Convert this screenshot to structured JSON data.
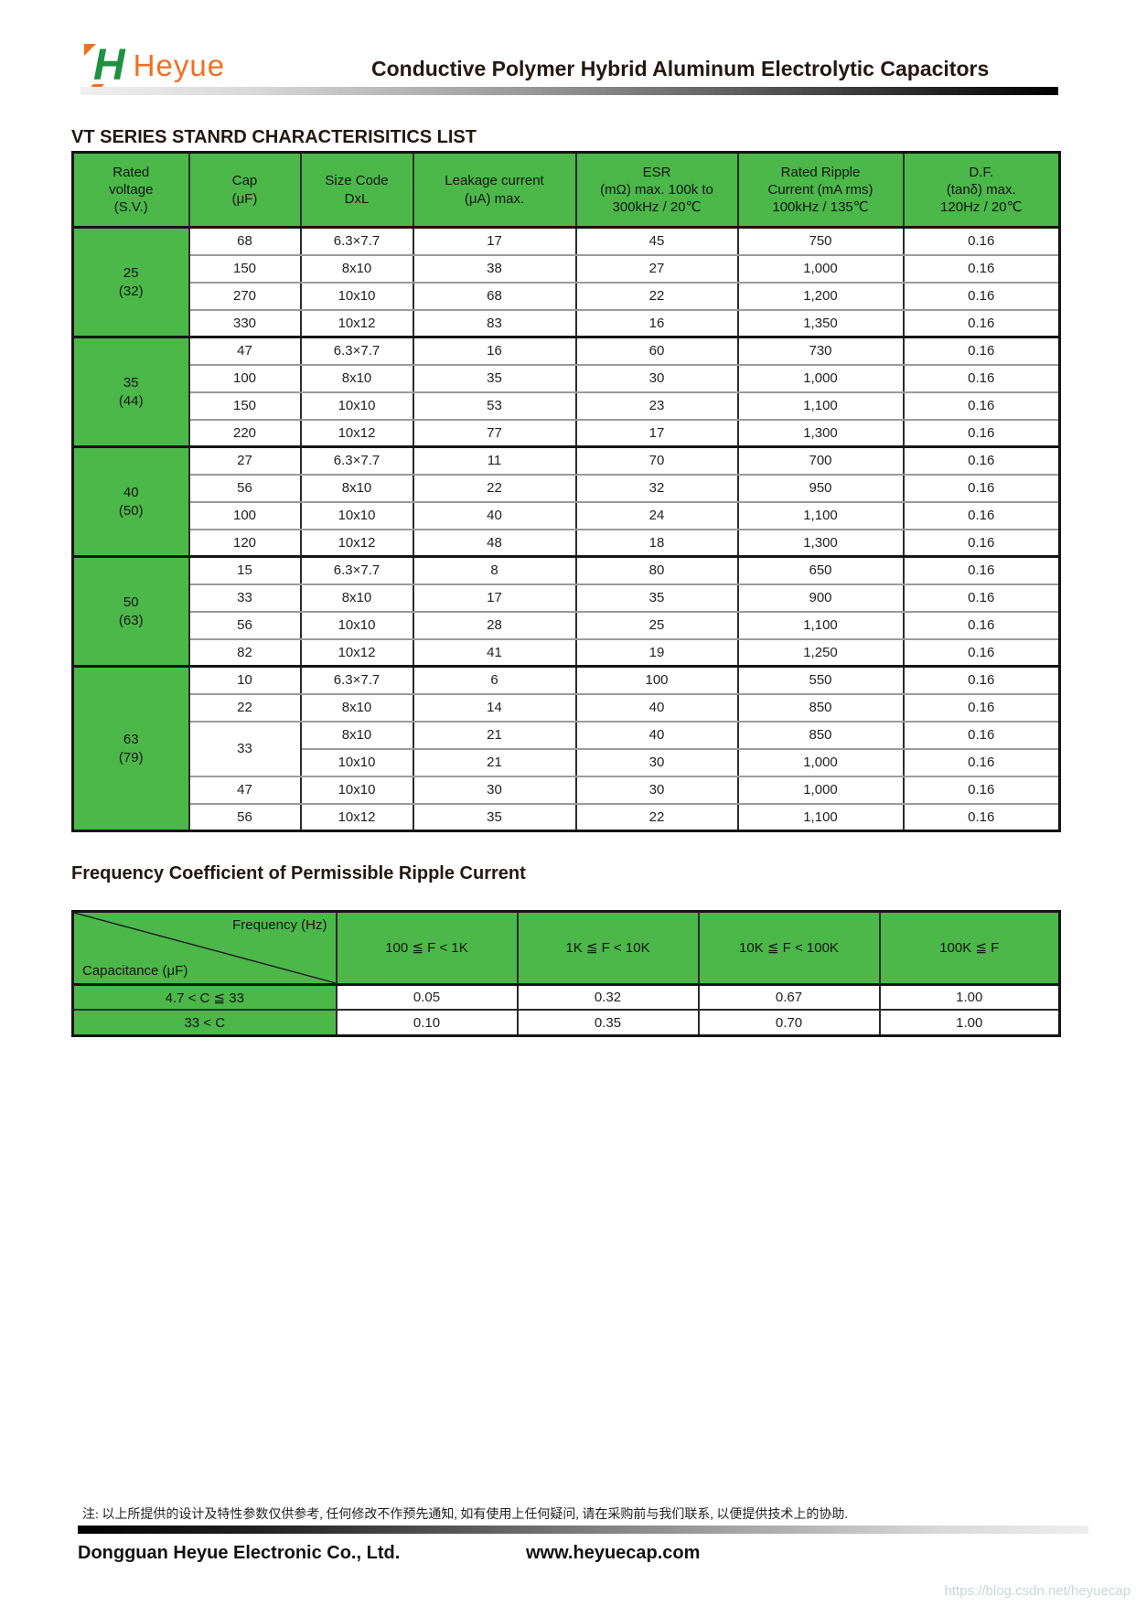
{
  "colors": {
    "table_green": "#4bb849",
    "logo_green": "#1e9240",
    "logo_orange": "#f26f21"
  },
  "header": {
    "logo_h": "H",
    "logo_text": "Heyue",
    "title": "Conductive Polymer Hybrid Aluminum Electrolytic Capacitors"
  },
  "sections": {
    "characteristics_title": "VT SERIES STANRD CHARACTERISITICS LIST",
    "frequency_title": "Frequency Coefficient of Permissible Ripple Current"
  },
  "characteristics_table": {
    "columns": [
      [
        "Rated",
        "voltage",
        "(S.V.)"
      ],
      [
        "Cap",
        "(μF)"
      ],
      [
        "Size Code",
        "DxL"
      ],
      [
        "Leakage current",
        "(μA) max."
      ],
      [
        "ESR",
        "(mΩ) max. 100k to",
        "300kHz / 20℃"
      ],
      [
        "Rated Ripple",
        "Current (mA rms)",
        "100kHz / 135℃"
      ],
      [
        "D.F.",
        "(tanδ) max.",
        "120Hz / 20℃"
      ]
    ],
    "groups": [
      {
        "voltage": "25",
        "surge": "(32)",
        "rows": [
          {
            "cap": "68",
            "size": "6.3×7.7",
            "leak": "17",
            "esr": "45",
            "ripple": "750",
            "df": "0.16"
          },
          {
            "cap": "150",
            "size": "8x10",
            "leak": "38",
            "esr": "27",
            "ripple": "1,000",
            "df": "0.16"
          },
          {
            "cap": "270",
            "size": "10x10",
            "leak": "68",
            "esr": "22",
            "ripple": "1,200",
            "df": "0.16"
          },
          {
            "cap": "330",
            "size": "10x12",
            "leak": "83",
            "esr": "16",
            "ripple": "1,350",
            "df": "0.16"
          }
        ]
      },
      {
        "voltage": "35",
        "surge": "(44)",
        "rows": [
          {
            "cap": "47",
            "size": "6.3×7.7",
            "leak": "16",
            "esr": "60",
            "ripple": "730",
            "df": "0.16"
          },
          {
            "cap": "100",
            "size": "8x10",
            "leak": "35",
            "esr": "30",
            "ripple": "1,000",
            "df": "0.16"
          },
          {
            "cap": "150",
            "size": "10x10",
            "leak": "53",
            "esr": "23",
            "ripple": "1,100",
            "df": "0.16"
          },
          {
            "cap": "220",
            "size": "10x12",
            "leak": "77",
            "esr": "17",
            "ripple": "1,300",
            "df": "0.16"
          }
        ]
      },
      {
        "voltage": "40",
        "surge": "(50)",
        "rows": [
          {
            "cap": "27",
            "size": "6.3×7.7",
            "leak": "11",
            "esr": "70",
            "ripple": "700",
            "df": "0.16"
          },
          {
            "cap": "56",
            "size": "8x10",
            "leak": "22",
            "esr": "32",
            "ripple": "950",
            "df": "0.16"
          },
          {
            "cap": "100",
            "size": "10x10",
            "leak": "40",
            "esr": "24",
            "ripple": "1,100",
            "df": "0.16"
          },
          {
            "cap": "120",
            "size": "10x12",
            "leak": "48",
            "esr": "18",
            "ripple": "1,300",
            "df": "0.16"
          }
        ]
      },
      {
        "voltage": "50",
        "surge": "(63)",
        "rows": [
          {
            "cap": "15",
            "size": "6.3×7.7",
            "leak": "8",
            "esr": "80",
            "ripple": "650",
            "df": "0.16"
          },
          {
            "cap": "33",
            "size": "8x10",
            "leak": "17",
            "esr": "35",
            "ripple": "900",
            "df": "0.16"
          },
          {
            "cap": "56",
            "size": "10x10",
            "leak": "28",
            "esr": "25",
            "ripple": "1,100",
            "df": "0.16"
          },
          {
            "cap": "82",
            "size": "10x12",
            "leak": "41",
            "esr": "19",
            "ripple": "1,250",
            "df": "0.16"
          }
        ]
      },
      {
        "voltage": "63",
        "surge": "(79)",
        "rows": [
          {
            "cap": "10",
            "size": "6.3×7.7",
            "leak": "6",
            "esr": "100",
            "ripple": "550",
            "df": "0.16"
          },
          {
            "cap": "22",
            "size": "8x10",
            "leak": "14",
            "esr": "40",
            "ripple": "850",
            "df": "0.16"
          },
          {
            "cap": "33",
            "cap_rowspan": 2,
            "size": "8x10",
            "leak": "21",
            "esr": "40",
            "ripple": "850",
            "df": "0.16"
          },
          {
            "size": "10x10",
            "leak": "21",
            "esr": "30",
            "ripple": "1,000",
            "df": "0.16"
          },
          {
            "cap": "47",
            "size": "10x10",
            "leak": "30",
            "esr": "30",
            "ripple": "1,000",
            "df": "0.16"
          },
          {
            "cap": "56",
            "size": "10x12",
            "leak": "35",
            "esr": "22",
            "ripple": "1,100",
            "df": "0.16"
          }
        ]
      }
    ]
  },
  "freq_table": {
    "corner": {
      "top": "Frequency (Hz)",
      "bottom": "Capacitance (μF)"
    },
    "columns": [
      "100 ≦ F < 1K",
      "1K ≦ F < 10K",
      "10K ≦ F < 100K",
      "100K ≦ F"
    ],
    "rows": [
      {
        "label": "4.7 < C ≦ 33",
        "values": [
          "0.05",
          "0.32",
          "0.67",
          "1.00"
        ]
      },
      {
        "label": "33 < C",
        "values": [
          "0.10",
          "0.35",
          "0.70",
          "1.00"
        ]
      }
    ]
  },
  "footer": {
    "note": "注: 以上所提供的设计及特性参数仅供参考, 任何修改不作预先通知, 如有使用上任何疑问, 请在采购前与我们联系, 以便提供技术上的协助.",
    "company": "Dongguan Heyue Electronic Co., Ltd.",
    "website": "www.heyuecap.com",
    "watermark": "https://blog.csdn.net/heyuecap"
  }
}
